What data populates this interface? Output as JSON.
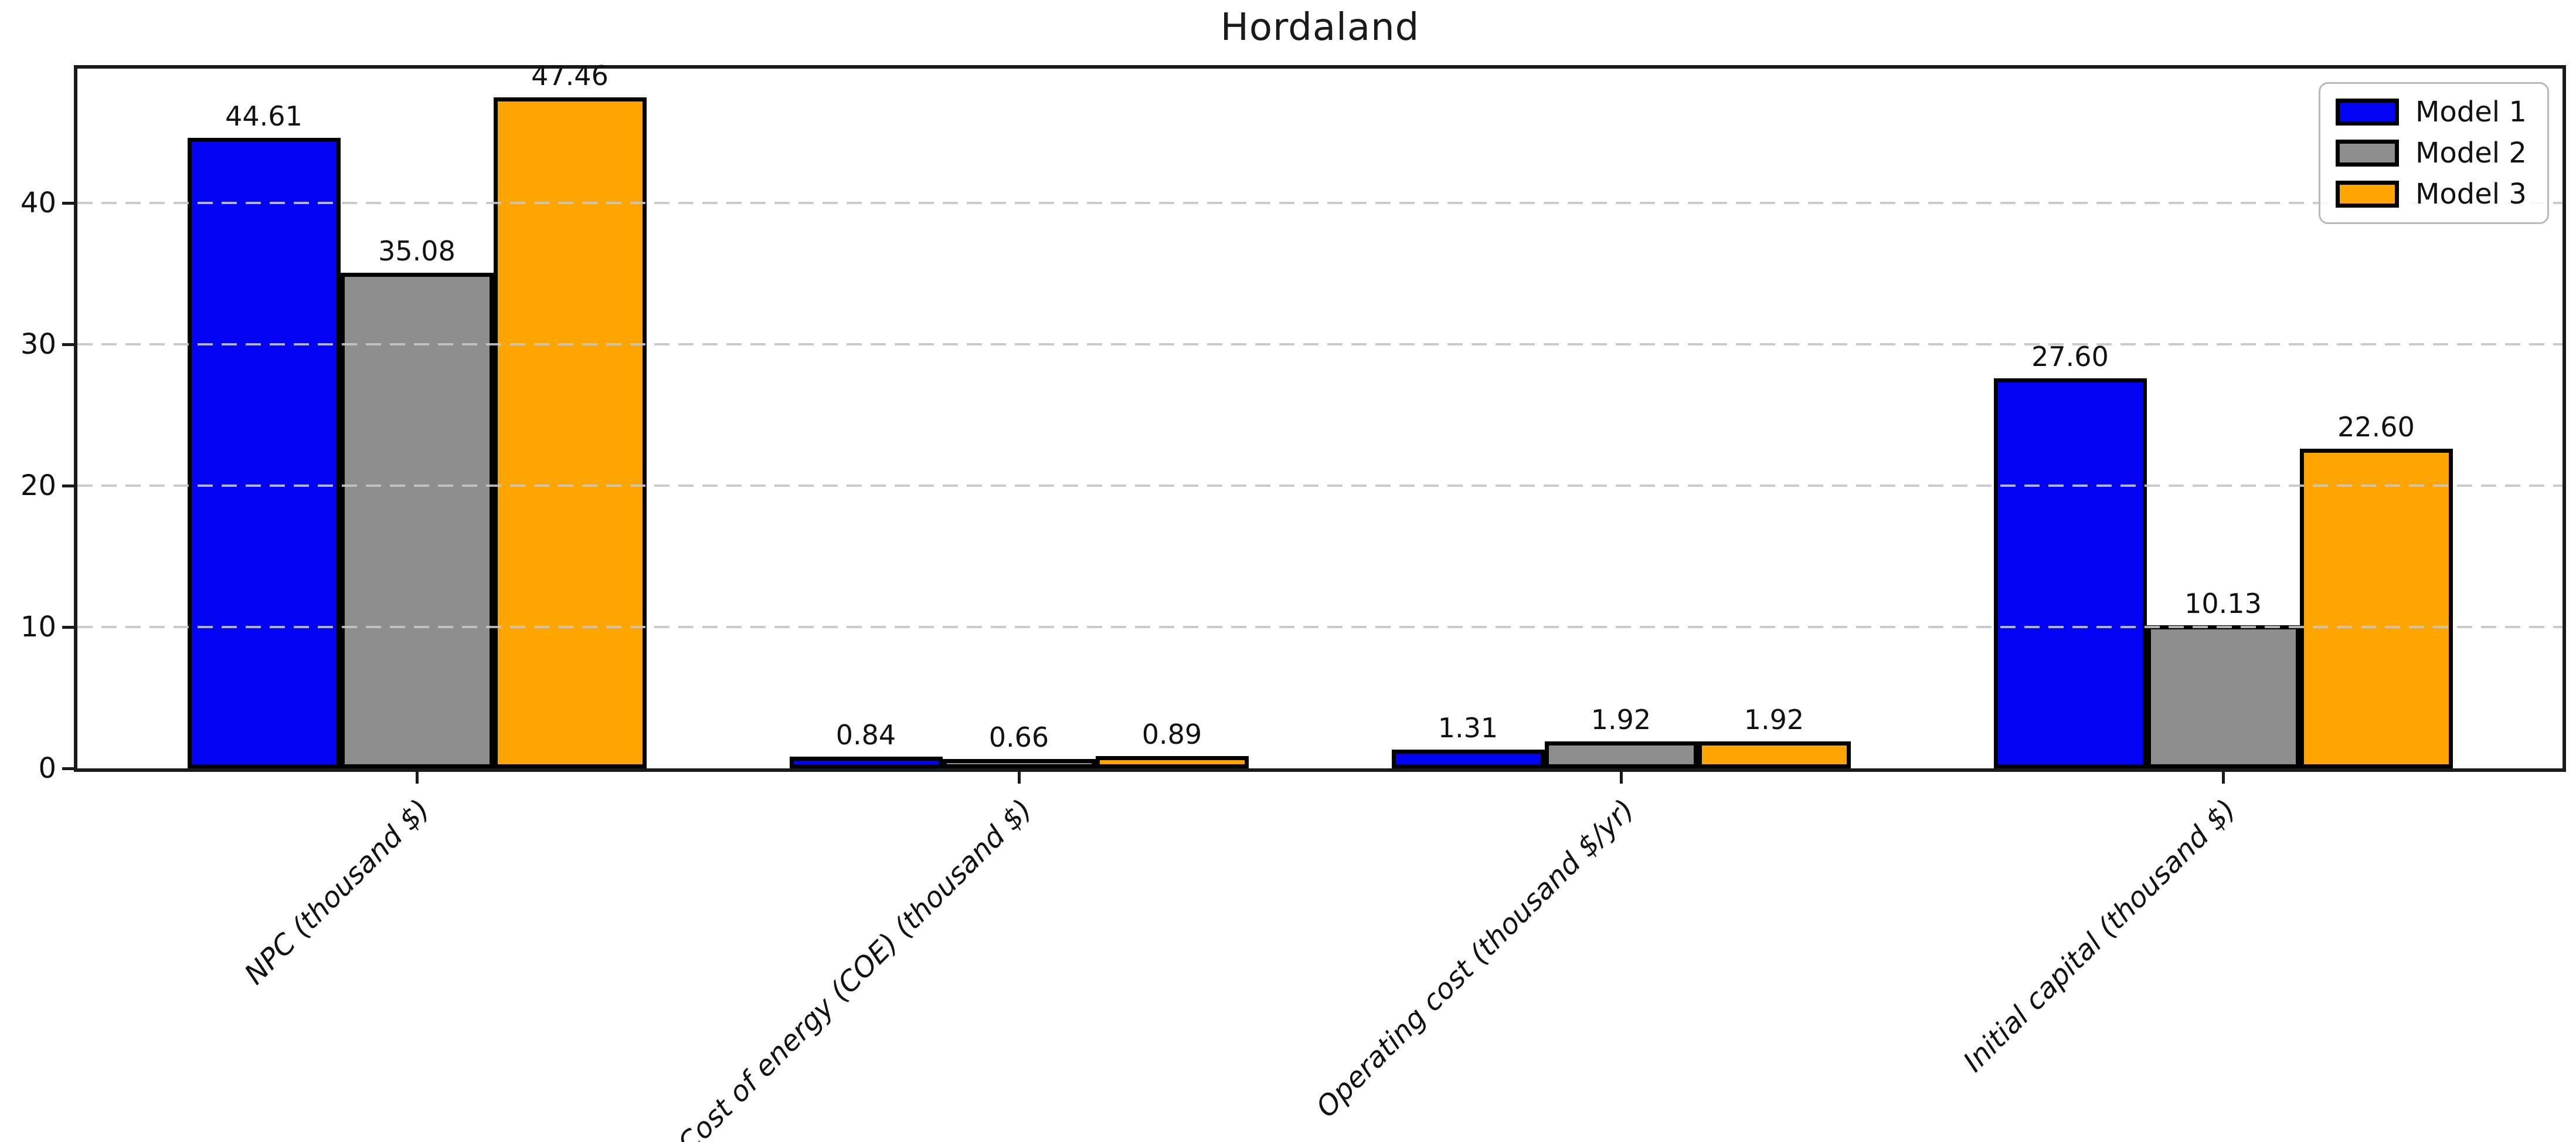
{
  "title": "Hordaland",
  "chart_data": {
    "type": "bar",
    "title": "Hordaland",
    "categories": [
      "NPC (thousand $)",
      "Cost of energy (COE) (thousand $)",
      "Operating cost (thousand $/yr)",
      "Initial capital (thousand $)"
    ],
    "series": [
      {
        "name": "Model 1",
        "color": "#0202f5",
        "values": [
          44.61,
          0.84,
          1.31,
          27.6
        ]
      },
      {
        "name": "Model 2",
        "color": "#8e8e8e",
        "values": [
          35.08,
          0.66,
          1.92,
          10.13
        ]
      },
      {
        "name": "Model 3",
        "color": "#ffa500",
        "values": [
          47.46,
          0.89,
          1.92,
          22.6
        ]
      }
    ],
    "xlabel": "",
    "ylabel": "",
    "ylim": [
      0,
      49.5
    ],
    "yticks": [
      0,
      10,
      20,
      30,
      40
    ],
    "grid": "horizontal-dashed-over-bars",
    "gridline_color": "#c6c6c6",
    "bar_edge_color": "#000000",
    "value_label_decimals": 2,
    "legend_position": "top-right",
    "tick_label_style_x": "italic-rotated-45"
  }
}
